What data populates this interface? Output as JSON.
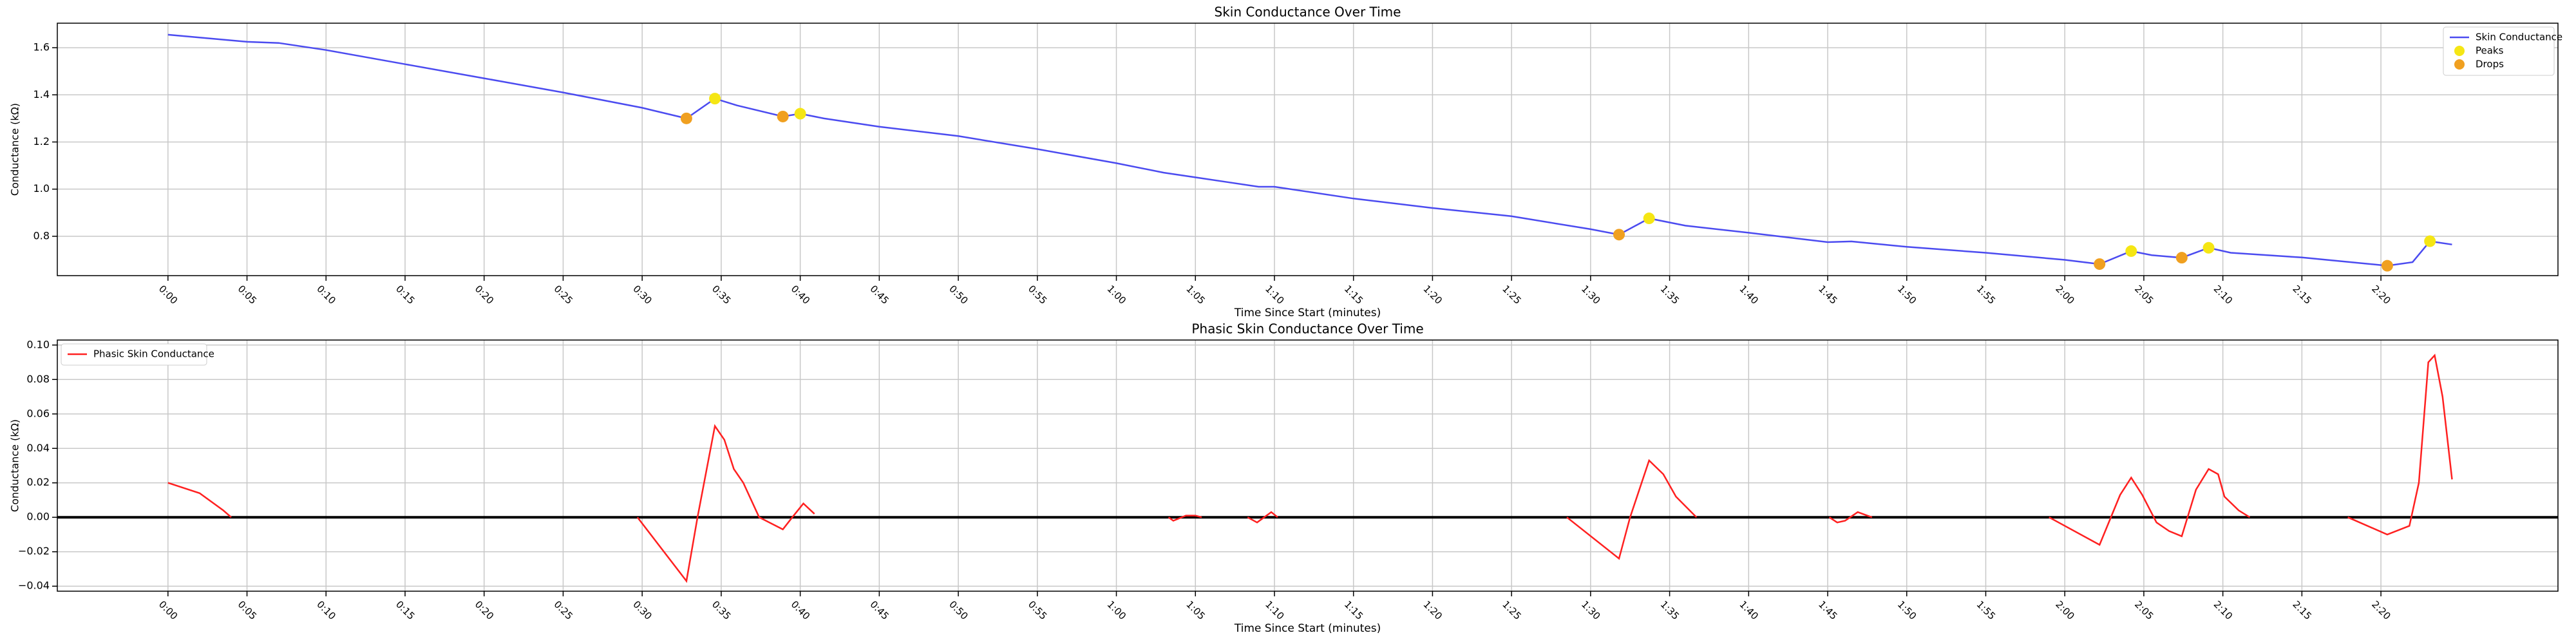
{
  "chart_data": [
    {
      "type": "line",
      "title": "Skin Conductance Over Time",
      "xlabel": "Time Since Start (minutes)",
      "ylabel": "Conductance (kΩ)",
      "xlim": [
        -7,
        151.2
      ],
      "ylim": [
        0.633,
        1.704
      ],
      "grid": true,
      "legend": "upper right",
      "xticks": [
        {
          "value": 0,
          "label": "0:00"
        },
        {
          "value": 5,
          "label": "0:05"
        },
        {
          "value": 10,
          "label": "0:10"
        },
        {
          "value": 15,
          "label": "0:15"
        },
        {
          "value": 20,
          "label": "0:20"
        },
        {
          "value": 25,
          "label": "0:25"
        },
        {
          "value": 30,
          "label": "0:30"
        },
        {
          "value": 35,
          "label": "0:35"
        },
        {
          "value": 40,
          "label": "0:40"
        },
        {
          "value": 45,
          "label": "0:45"
        },
        {
          "value": 50,
          "label": "0:50"
        },
        {
          "value": 55,
          "label": "0:55"
        },
        {
          "value": 60,
          "label": "1:00"
        },
        {
          "value": 65,
          "label": "1:05"
        },
        {
          "value": 70,
          "label": "1:10"
        },
        {
          "value": 75,
          "label": "1:15"
        },
        {
          "value": 80,
          "label": "1:20"
        },
        {
          "value": 85,
          "label": "1:25"
        },
        {
          "value": 90,
          "label": "1:30"
        },
        {
          "value": 95,
          "label": "1:35"
        },
        {
          "value": 100,
          "label": "1:40"
        },
        {
          "value": 105,
          "label": "1:45"
        },
        {
          "value": 110,
          "label": "1:50"
        },
        {
          "value": 115,
          "label": "1:55"
        },
        {
          "value": 120,
          "label": "2:00"
        },
        {
          "value": 125,
          "label": "2:05"
        },
        {
          "value": 130,
          "label": "2:10"
        },
        {
          "value": 135,
          "label": "2:15"
        },
        {
          "value": 140,
          "label": "2:20"
        }
      ],
      "yticks": [
        0.8,
        {
          "value": 1.0,
          "label": "1.0"
        },
        1.2,
        1.4,
        1.6
      ],
      "series": [
        {
          "name": "Skin Conductance",
          "kind": "line",
          "color": "#4b4bf0",
          "x": [
            0,
            5,
            7,
            10,
            15,
            20,
            25,
            30,
            32.8,
            34.6,
            36,
            38.9,
            40,
            41.5,
            45,
            50,
            55,
            60,
            63,
            65,
            67,
            69,
            70,
            72,
            75,
            80,
            85,
            90,
            91.8,
            93.7,
            96,
            100,
            105,
            106.5,
            110,
            115,
            120,
            122.2,
            124.2,
            125.5,
            127.4,
            129.1,
            130.5,
            135,
            140.4,
            142,
            143.1,
            144.5
          ],
          "values": [
            1.655,
            1.625,
            1.62,
            1.59,
            1.53,
            1.47,
            1.41,
            1.345,
            1.3,
            1.384,
            1.355,
            1.308,
            1.32,
            1.3,
            1.265,
            1.225,
            1.17,
            1.11,
            1.07,
            1.05,
            1.03,
            1.01,
            1.01,
            0.99,
            0.96,
            0.92,
            0.885,
            0.83,
            0.807,
            0.876,
            0.845,
            0.815,
            0.775,
            0.778,
            0.755,
            0.73,
            0.7,
            0.682,
            0.737,
            0.72,
            0.709,
            0.751,
            0.73,
            0.71,
            0.675,
            0.69,
            0.779,
            0.765
          ]
        },
        {
          "name": "Peaks",
          "kind": "scatter",
          "color": "#f5e614",
          "x": [
            34.6,
            40.0,
            93.7,
            124.2,
            129.1,
            143.1
          ],
          "values": [
            1.384,
            1.32,
            0.876,
            0.737,
            0.751,
            0.779
          ]
        },
        {
          "name": "Drops",
          "kind": "scatter",
          "color": "#f0a020",
          "x": [
            32.8,
            38.9,
            91.8,
            122.2,
            127.4,
            140.4
          ],
          "values": [
            1.3,
            1.308,
            0.807,
            0.682,
            0.709,
            0.675
          ]
        }
      ]
    },
    {
      "type": "line",
      "title": "Phasic Skin Conductance Over Time",
      "xlabel": "Time Since Start (minutes)",
      "ylabel": "Conductance (kΩ)",
      "xlim": [
        -7,
        151.2
      ],
      "ylim": [
        -0.0429,
        0.1029
      ],
      "grid": true,
      "legend": "upper left",
      "hline": 0,
      "xticks": [
        {
          "value": 0,
          "label": "0:00"
        },
        {
          "value": 5,
          "label": "0:05"
        },
        {
          "value": 10,
          "label": "0:10"
        },
        {
          "value": 15,
          "label": "0:15"
        },
        {
          "value": 20,
          "label": "0:20"
        },
        {
          "value": 25,
          "label": "0:25"
        },
        {
          "value": 30,
          "label": "0:30"
        },
        {
          "value": 35,
          "label": "0:35"
        },
        {
          "value": 40,
          "label": "0:40"
        },
        {
          "value": 45,
          "label": "0:45"
        },
        {
          "value": 50,
          "label": "0:50"
        },
        {
          "value": 55,
          "label": "0:55"
        },
        {
          "value": 60,
          "label": "1:00"
        },
        {
          "value": 65,
          "label": "1:05"
        },
        {
          "value": 70,
          "label": "1:10"
        },
        {
          "value": 75,
          "label": "1:15"
        },
        {
          "value": 80,
          "label": "1:20"
        },
        {
          "value": 85,
          "label": "1:25"
        },
        {
          "value": 90,
          "label": "1:30"
        },
        {
          "value": 95,
          "label": "1:35"
        },
        {
          "value": 100,
          "label": "1:40"
        },
        {
          "value": 105,
          "label": "1:45"
        },
        {
          "value": 110,
          "label": "1:50"
        },
        {
          "value": 115,
          "label": "1:55"
        },
        {
          "value": 120,
          "label": "2:00"
        },
        {
          "value": 125,
          "label": "2:05"
        },
        {
          "value": 130,
          "label": "2:10"
        },
        {
          "value": 135,
          "label": "2:15"
        },
        {
          "value": 140,
          "label": "2:20"
        }
      ],
      "yticks": [
        {
          "value": -0.04,
          "label": "−0.04"
        },
        {
          "value": -0.02,
          "label": "−0.02"
        },
        {
          "value": 0,
          "label": "0.00"
        },
        0.02,
        0.04,
        0.06,
        0.08,
        {
          "value": 0.1,
          "label": "0.10"
        }
      ],
      "series": [
        {
          "name": "Phasic Skin Conductance",
          "kind": "line",
          "color": "#ff2020",
          "x": [
            0,
            2,
            3.5,
            4.0,
            15,
            29.7,
            32.8,
            33.5,
            34.6,
            35.2,
            35.8,
            36.4,
            37.4,
            38.9,
            39.5,
            40.2,
            40.9,
            50,
            63.3,
            63.6,
            64.4,
            65,
            65.4,
            67,
            68.3,
            68.9,
            69.8,
            70.2,
            80,
            88.5,
            91.8,
            92.5,
            93.7,
            94.6,
            95.4,
            96.7,
            100,
            105.1,
            105.6,
            106.1,
            106.9,
            107.5,
            107.8,
            115,
            119.0,
            122.2,
            123.5,
            124.2,
            124.9,
            125.8,
            126.6,
            127.4,
            128.3,
            129.1,
            129.7,
            130.1,
            131,
            131.7,
            135,
            137.9,
            140.4,
            141.8,
            142.4,
            143.0,
            143.4,
            143.9,
            144.5
          ],
          "values": [
            0.02,
            0.014,
            0.004,
            0,
            null,
            0,
            -0.037,
            0,
            0.053,
            0.045,
            0.028,
            0.02,
            0,
            -0.007,
            0,
            0.008,
            0.002,
            null,
            0,
            -0.002,
            0.001,
            0.001,
            0,
            null,
            0,
            -0.003,
            0.003,
            0,
            null,
            0,
            -0.024,
            0,
            0.033,
            0.025,
            0.012,
            0,
            null,
            0,
            -0.003,
            -0.002,
            0.003,
            0.001,
            0,
            null,
            0,
            -0.016,
            0.013,
            0.023,
            0.013,
            -0.003,
            -0.008,
            -0.011,
            0.016,
            0.028,
            0.025,
            0.012,
            0.004,
            0,
            null,
            0,
            -0.01,
            -0.005,
            0.02,
            0.09,
            0.094,
            0.07,
            0.022
          ]
        }
      ]
    }
  ]
}
